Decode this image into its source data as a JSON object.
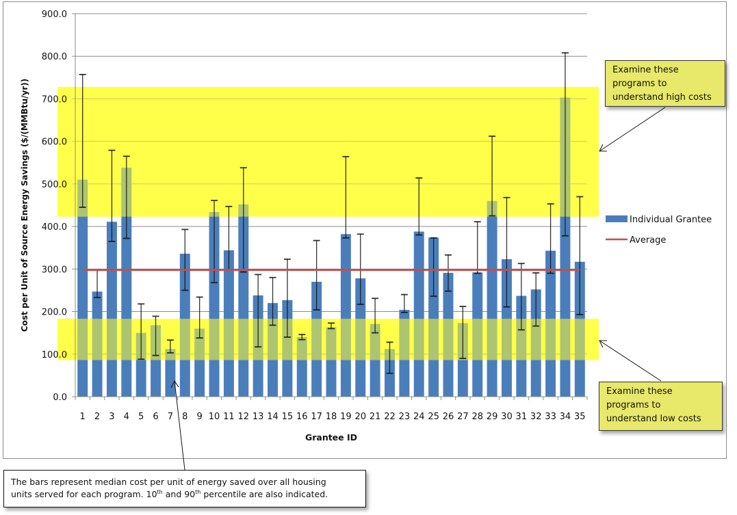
{
  "chart_data": {
    "type": "bar",
    "title": "",
    "xlabel": "Grantee ID",
    "ylabel": "Cost per Unit of Source Energy Savings ($/(MMBtu/yr))",
    "ylim": [
      0,
      900
    ],
    "yticks": [
      "0.0",
      "100.0",
      "200.0",
      "300.0",
      "400.0",
      "500.0",
      "600.0",
      "700.0",
      "800.0",
      "900.0"
    ],
    "grid": true,
    "legend_position": "right",
    "categories": [
      "1",
      "2",
      "3",
      "4",
      "5",
      "6",
      "7",
      "8",
      "9",
      "10",
      "11",
      "12",
      "13",
      "14",
      "15",
      "16",
      "17",
      "18",
      "19",
      "20",
      "21",
      "22",
      "23",
      "24",
      "25",
      "26",
      "27",
      "28",
      "29",
      "30",
      "31",
      "32",
      "33",
      "34",
      "35"
    ],
    "series": [
      {
        "name": "Individual Grantee",
        "type": "bar",
        "color": "#4a7ebb",
        "values": [
          510,
          247,
          411,
          538,
          150,
          168,
          112,
          336,
          160,
          434,
          344,
          452,
          238,
          220,
          227,
          140,
          270,
          163,
          382,
          278,
          171,
          112,
          204,
          388,
          374,
          291,
          173,
          292,
          460,
          323,
          237,
          252,
          343,
          703,
          317
        ],
        "p90": [
          757,
          297,
          579,
          565,
          218,
          189,
          133,
          393,
          234,
          461,
          447,
          538,
          287,
          280,
          323,
          146,
          367,
          173,
          564,
          382,
          231,
          128,
          240,
          514,
          373,
          333,
          212,
          411,
          612,
          468,
          313,
          291,
          453,
          808,
          470
        ],
        "p10": [
          445,
          233,
          365,
          372,
          88,
          97,
          103,
          250,
          138,
          268,
          298,
          293,
          117,
          168,
          140,
          134,
          204,
          160,
          373,
          217,
          150,
          55,
          198,
          380,
          236,
          248,
          90,
          290,
          425,
          211,
          157,
          166,
          290,
          378,
          193
        ]
      },
      {
        "name": "Average",
        "type": "line",
        "color": "#c0504d",
        "value": 298
      }
    ],
    "highlight_bands": [
      {
        "name": "high-cost-band",
        "from": 423,
        "to": 728,
        "color": "#ffff33"
      },
      {
        "name": "low-cost-band",
        "from": 86,
        "to": 183,
        "color": "#ffff33"
      }
    ],
    "annotations": {
      "high": [
        "Examine these",
        "programs to",
        "understand high costs"
      ],
      "low": [
        "Examine these",
        "programs to",
        "understand low costs"
      ],
      "note_line1": "The bars represent median cost per unit of energy saved over all housing",
      "note_line2_a": "units served for each program.  10",
      "note_sup1": "th",
      "note_line2_b": " and 90",
      "note_sup2": "th",
      "note_line2_c": " percentile are also indicated."
    }
  }
}
